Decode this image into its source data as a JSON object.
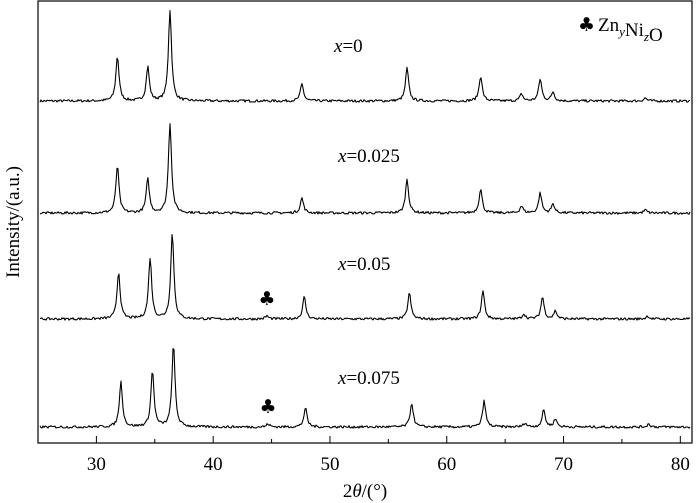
{
  "chart_data": {
    "type": "line",
    "xlabel": "2θ/(°)",
    "ylabel": "Intensity/(a.u.)",
    "xlim": [
      25,
      81
    ],
    "x_ticks": [
      30,
      40,
      50,
      60,
      70,
      80
    ],
    "grid": false,
    "legend": {
      "marker": "♣",
      "label": "Zn_y Ni_z O",
      "base": [
        "Zn",
        "Ni",
        "O"
      ],
      "subscripts": [
        "y",
        "z"
      ],
      "placement": "top-right"
    },
    "series": [
      {
        "name": "x=0",
        "label_var": "x",
        "label_value": "=0",
        "peaks": [
          [
            31.8,
            0.45
          ],
          [
            34.4,
            0.34
          ],
          [
            36.3,
            0.91
          ],
          [
            47.6,
            0.17
          ],
          [
            56.6,
            0.33
          ],
          [
            62.9,
            0.25
          ],
          [
            66.4,
            0.07
          ],
          [
            68.0,
            0.22
          ],
          [
            69.1,
            0.09
          ],
          [
            77.0,
            0.03
          ]
        ],
        "impurity_marker": null
      },
      {
        "name": "x=0.025",
        "label_var": "x",
        "label_value": "=0.025",
        "peaks": [
          [
            31.8,
            0.47
          ],
          [
            34.4,
            0.34
          ],
          [
            36.3,
            0.9
          ],
          [
            47.6,
            0.15
          ],
          [
            56.6,
            0.34
          ],
          [
            62.9,
            0.24
          ],
          [
            66.4,
            0.07
          ],
          [
            68.0,
            0.2
          ],
          [
            69.1,
            0.09
          ],
          [
            77.0,
            0.03
          ]
        ],
        "impurity_marker": null
      },
      {
        "name": "x=0.05",
        "label_var": "x",
        "label_value": "=0.05",
        "peaks": [
          [
            31.9,
            0.47
          ],
          [
            34.6,
            0.61
          ],
          [
            36.5,
            0.86
          ],
          [
            44.6,
            0.03
          ],
          [
            47.8,
            0.22
          ],
          [
            56.8,
            0.26
          ],
          [
            63.1,
            0.28
          ],
          [
            66.6,
            0.05
          ],
          [
            68.2,
            0.22
          ],
          [
            69.3,
            0.08
          ],
          [
            77.2,
            0.03
          ]
        ],
        "impurity_marker": 44.6
      },
      {
        "name": "x=0.075",
        "label_var": "x",
        "label_value": "=0.075",
        "peaks": [
          [
            32.1,
            0.45
          ],
          [
            34.8,
            0.56
          ],
          [
            36.6,
            0.82
          ],
          [
            44.7,
            0.03
          ],
          [
            47.9,
            0.19
          ],
          [
            57.0,
            0.24
          ],
          [
            63.2,
            0.26
          ],
          [
            66.7,
            0.04
          ],
          [
            68.3,
            0.17
          ],
          [
            69.3,
            0.08
          ],
          [
            77.3,
            0.03
          ]
        ],
        "impurity_marker": 44.7
      }
    ]
  }
}
